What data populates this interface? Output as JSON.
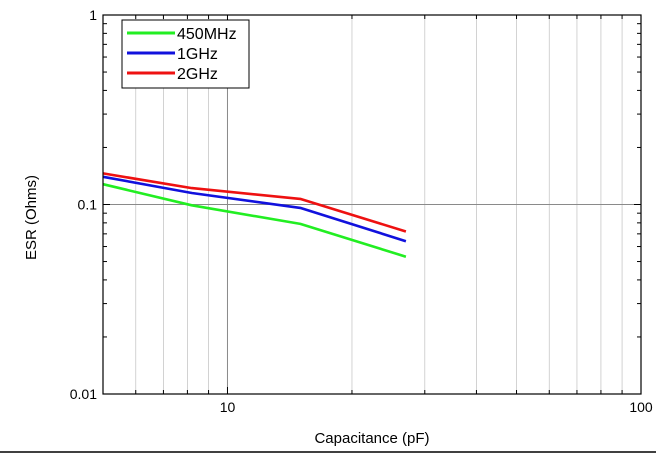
{
  "chart_data": {
    "type": "line",
    "xlabel": "Capacitance (pF)",
    "ylabel": "ESR (Ohms)",
    "x_scale": "log",
    "y_scale": "log",
    "xlim": [
      5,
      100
    ],
    "ylim": [
      0.01,
      1
    ],
    "x_tick_labels": [
      {
        "value": 10,
        "label": "10"
      },
      {
        "value": 100,
        "label": "100"
      }
    ],
    "y_tick_labels": [
      {
        "value": 0.01,
        "label": "0.01"
      },
      {
        "value": 0.1,
        "label": "0.1"
      },
      {
        "value": 1,
        "label": "1"
      }
    ],
    "grid": true,
    "legend_position": "top-left",
    "series": [
      {
        "name": "450MHz",
        "color": "#22ee22",
        "x": [
          5,
          8.2,
          15,
          27
        ],
        "y": [
          0.128,
          0.099,
          0.079,
          0.053
        ]
      },
      {
        "name": "1GHz",
        "color": "#1111dd",
        "x": [
          5,
          8.2,
          15,
          27
        ],
        "y": [
          0.14,
          0.115,
          0.096,
          0.064
        ]
      },
      {
        "name": "2GHz",
        "color": "#ee1111",
        "x": [
          5,
          8.2,
          15,
          27
        ],
        "y": [
          0.146,
          0.122,
          0.107,
          0.072
        ]
      }
    ]
  }
}
